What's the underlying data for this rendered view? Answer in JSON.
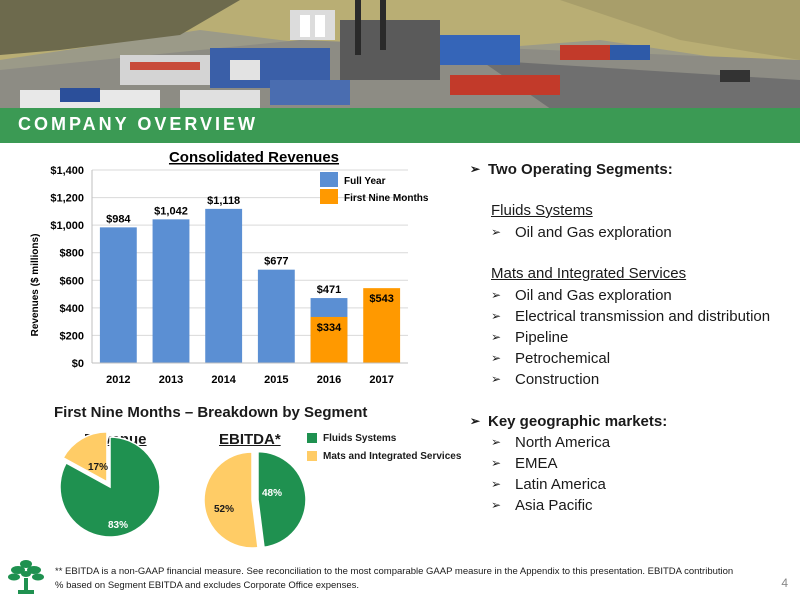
{
  "banner": {
    "title": "COMPANY OVERVIEW"
  },
  "chart": {
    "title": "Consolidated Revenues",
    "ylabel": "Revenues ($ millions)",
    "legend": {
      "full_year": "Full Year",
      "nine_months": "First Nine Months"
    }
  },
  "chart_data": [
    {
      "type": "bar",
      "title": "Consolidated Revenues",
      "ylabel": "Revenues ($ millions)",
      "xlabel": "",
      "categories": [
        "2012",
        "2013",
        "2014",
        "2015",
        "2016",
        "2017"
      ],
      "yticks": [
        "$0",
        "$200",
        "$400",
        "$600",
        "$800",
        "$1,000",
        "$1,200",
        "$1,400"
      ],
      "ylim": [
        0,
        1400
      ],
      "series": [
        {
          "name": "Full Year",
          "values": [
            984,
            1042,
            1118,
            677,
            471,
            null
          ],
          "labels": [
            "$984",
            "$1,042",
            "$1,118",
            "$677",
            "$471",
            ""
          ]
        },
        {
          "name": "First Nine Months",
          "values": [
            null,
            null,
            null,
            null,
            334,
            543
          ],
          "labels": [
            "",
            "",
            "",
            "",
            "$334",
            "$543"
          ]
        }
      ],
      "legend": "top-right",
      "colors": {
        "full_year": "#5b8fd3",
        "nine_months": "#ff9900"
      }
    },
    {
      "type": "pie",
      "title": "Revenue",
      "labels": [
        "Fluids Systems",
        "Mats and Integrated Services"
      ],
      "values": [
        83,
        17
      ],
      "value_labels": [
        "83%",
        "17%"
      ]
    },
    {
      "type": "pie",
      "title": "EBITDA*",
      "labels": [
        "Fluids Systems",
        "Mats and Integrated Services"
      ],
      "values": [
        48,
        52
      ],
      "value_labels": [
        "48%",
        "52%"
      ]
    }
  ],
  "segments": {
    "title": "First Nine Months – Breakdown by Segment",
    "revenue_label": "Revenue",
    "ebitda_label": "EBITDA*",
    "legend": [
      "Fluids Systems",
      "Mats and Integrated Services"
    ],
    "colors": {
      "fluids": "#1f9150",
      "mats": "#ffcc66"
    }
  },
  "right": {
    "heading1": "Two Operating Segments:",
    "fluids_title": "Fluids Systems",
    "fluids_items": [
      "Oil and Gas exploration"
    ],
    "mats_title": "Mats and Integrated Services",
    "mats_items": [
      "Oil and Gas exploration",
      "Electrical transmission and distribution",
      "Pipeline",
      "Petrochemical",
      "Construction"
    ],
    "heading2": "Key geographic markets:",
    "markets": [
      "North America",
      "EMEA",
      "Latin America",
      "Asia Pacific"
    ]
  },
  "footnote": "** EBITDA is a non-GAAP financial measure.  See reconciliation to the most comparable GAAP measure in the Appendix to this presentation. EBITDA contribution % based on Segment EBITDA and excludes Corporate Office expenses.",
  "page_number": "4",
  "icons": {
    "bullet": "arrow-bullet-icon",
    "logo": "tree-logo-icon"
  }
}
